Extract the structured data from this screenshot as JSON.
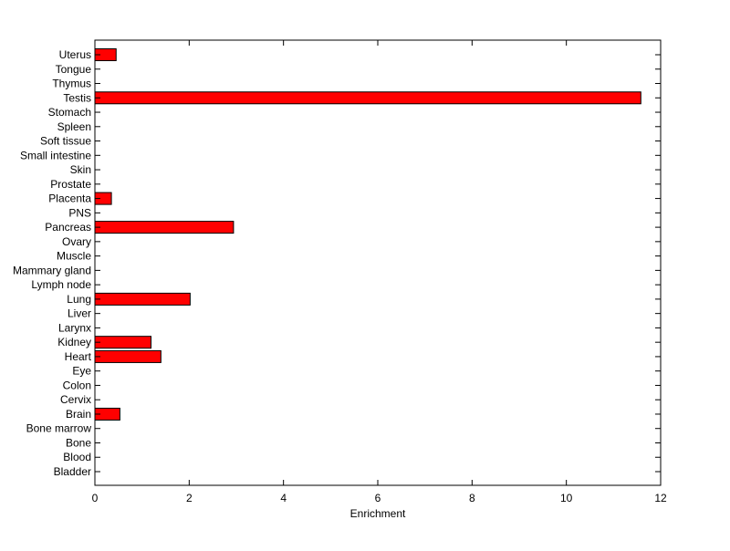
{
  "chart_data": {
    "type": "bar",
    "orientation": "horizontal",
    "title": "",
    "xlabel": "Enrichment",
    "ylabel": "",
    "xlim": [
      0,
      12
    ],
    "xticks": [
      "0",
      "2",
      "4",
      "6",
      "8",
      "10",
      "12"
    ],
    "grid": false,
    "bar_color": "#ff0000",
    "bar_edge_color": "#000000",
    "categories": [
      "Bladder",
      "Blood",
      "Bone",
      "Bone marrow",
      "Brain",
      "Cervix",
      "Colon",
      "Eye",
      "Heart",
      "Kidney",
      "Larynx",
      "Liver",
      "Lung",
      "Lymph node",
      "Mammary gland",
      "Muscle",
      "Ovary",
      "Pancreas",
      "PNS",
      "Placenta",
      "Prostate",
      "Skin",
      "Small intestine",
      "Soft tissue",
      "Spleen",
      "Stomach",
      "Testis",
      "Thymus",
      "Tongue",
      "Uterus"
    ],
    "values": [
      0,
      0,
      0,
      0,
      0.53,
      0,
      0,
      0,
      1.4,
      1.19,
      0,
      0,
      2.02,
      0,
      0,
      0,
      0,
      2.94,
      0,
      0.35,
      0,
      0,
      0,
      0,
      0,
      0,
      11.58,
      0,
      0,
      0.45
    ]
  }
}
